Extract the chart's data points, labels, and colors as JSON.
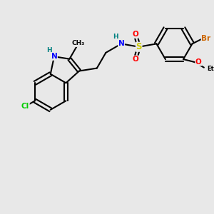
{
  "background_color": "#e8e8e8",
  "bond_color": "#000000",
  "atom_colors": {
    "N": "#0000ff",
    "O": "#ff0000",
    "S": "#cccc00",
    "Cl": "#00cc00",
    "Br": "#cc6600",
    "C": "#000000",
    "H": "#008080"
  },
  "figsize": [
    3.0,
    3.0
  ],
  "dpi": 100,
  "bond_lw": 1.5,
  "font_size": 7.5
}
